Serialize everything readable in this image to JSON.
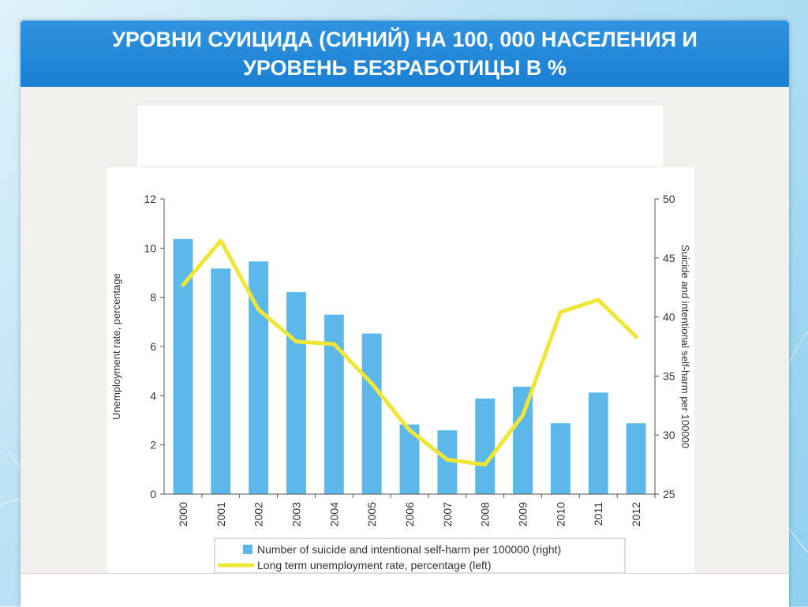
{
  "slide": {
    "title": "УРОВНИ СУИЦИДА (СИНИЙ)  НА 100, 000 НАСЕЛЕНИЯ И\nУРОВЕНЬ БЕЗРАБОТИЦЫ В %"
  },
  "colors": {
    "title_bar": "#1a7fd1",
    "bar": "#5bb8e8",
    "line": "#f0e637"
  },
  "chart_data": {
    "type": "bar",
    "categories": [
      "2000",
      "2001",
      "2002",
      "2003",
      "2004",
      "2005",
      "2006",
      "2007",
      "2008",
      "2009",
      "2010",
      "2011",
      "2012"
    ],
    "series": [
      {
        "name": "Number of suicide and intentional self-harm per 100000 (right)",
        "type": "bar",
        "axis": "right",
        "values": [
          46.6,
          44.1,
          44.7,
          42.1,
          40.2,
          38.6,
          30.9,
          30.4,
          33.1,
          34.1,
          31.0,
          33.6,
          31.0
        ]
      },
      {
        "name": "Long term unemployment rate, percentage (left)",
        "type": "line",
        "axis": "left",
        "values": [
          8.5,
          10.3,
          7.5,
          6.2,
          6.1,
          4.5,
          2.6,
          1.4,
          1.2,
          3.2,
          7.4,
          7.9,
          6.4
        ]
      }
    ],
    "left_axis": {
      "label": "Unemployment rate, percentage",
      "ylim": [
        0,
        12
      ],
      "ticks": [
        "0",
        "2",
        "4",
        "6",
        "8",
        "10",
        "12"
      ]
    },
    "right_axis": {
      "label": "Suicide and intentional self-harm per 100000",
      "ylim": [
        25,
        50
      ],
      "ticks": [
        "25",
        "30",
        "35",
        "40",
        "45",
        "50"
      ]
    },
    "grid": false,
    "legend_position": "bottom"
  }
}
